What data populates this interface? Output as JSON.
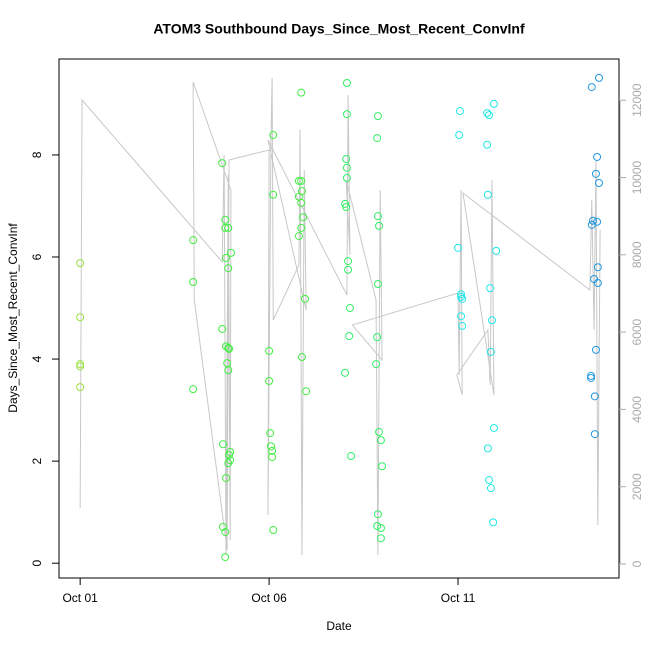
{
  "chart_data": {
    "type": "scatter",
    "title": "ATOM3 Southbound Days_Since_Most_Recent_ConvInf",
    "x_label": "Date",
    "y_label": "Days_Since_Most_Recent_ConvInf",
    "xlim": [
      -0.56,
      14.26
    ],
    "xticks": [
      {
        "value": 0,
        "label": "Oct 01"
      },
      {
        "value": 5,
        "label": "Oct 06"
      },
      {
        "value": 10,
        "label": "Oct 11"
      }
    ],
    "ylim": [
      -0.29,
      9.88
    ],
    "yticks": [
      0,
      2,
      4,
      6,
      8
    ],
    "y2lim": [
      -362,
      13066
    ],
    "y2ticks": [
      0,
      2000,
      4000,
      6000,
      8000,
      10000,
      12000
    ],
    "y2_color": "#aaaaaa",
    "series": [
      {
        "type": "line",
        "axis": "y2",
        "color": "#c8c8c8",
        "x": [
          0,
          0.05,
          3.76,
          3.81,
          3.86,
          3.92,
          3.97,
          3.99,
          2.99,
          3.02,
          3.89,
          3.94,
          5.0,
          4.97,
          5.05,
          5.08,
          5.11,
          5.79,
          5.82,
          5.87,
          5.93,
          5.98,
          4.97,
          7.06,
          7.09,
          7.14,
          7.04,
          7.83,
          7.88,
          7.94,
          7.99,
          7.2,
          10.0,
          10.03,
          10.08,
          10.11,
          9.97,
          10.79,
          10.85,
          10.9,
          10.95,
          10.13,
          13.49,
          13.54,
          13.6,
          13.65,
          13.7,
          13.76
        ],
        "values": [
          1449,
          12005,
          7814,
          10582,
          233,
          10065,
          621,
          9677,
          12471,
          6831,
          362,
          10453,
          10712,
          1268,
          10970,
          12575,
          6313,
          7736,
          11229,
          233,
          10194,
          6572,
          10970,
          6960,
          12135,
          7995,
          9935,
          6831,
          233,
          9677,
          5278,
          6184,
          7012,
          4890,
          9677,
          4373,
          4890,
          6055,
          4632,
          9935,
          4373,
          9599,
          7090,
          9418,
          6055,
          10453,
          1009,
          8641
        ]
      },
      {
        "type": "scatter",
        "color": "#99e040",
        "x": [
          0,
          0,
          0,
          0,
          0
        ],
        "values": [
          5.88,
          4.82,
          3.9,
          3.86,
          3.45
        ]
      },
      {
        "type": "scatter",
        "color": "#44ee44",
        "x": [
          2.99,
          2.99,
          2.99,
          3.76,
          3.84,
          3.84,
          3.92,
          3.99,
          3.86,
          3.92,
          3.76,
          3.86,
          3.92,
          3.94,
          3.89,
          3.92,
          3.78,
          3.97,
          3.94,
          3.97,
          3.92,
          3.86,
          3.78,
          3.84,
          3.84,
          5.11,
          5.11,
          5.0,
          5.0,
          5.03,
          5.05,
          5.08,
          5.08,
          5.11,
          5.85,
          5.79,
          5.85,
          5.87,
          5.79,
          5.85,
          5.9,
          5.85,
          5.79,
          5.95,
          5.87,
          5.98
        ],
        "values": [
          6.33,
          5.51,
          3.41,
          7.84,
          6.73,
          6.57,
          6.57,
          6.08,
          5.98,
          5.78,
          4.59,
          4.25,
          4.22,
          4.2,
          3.92,
          3.78,
          2.33,
          2.18,
          2.12,
          2.02,
          1.96,
          1.67,
          0.71,
          0.61,
          0.12,
          8.39,
          7.22,
          4.16,
          3.57,
          2.55,
          2.29,
          2.2,
          2.08,
          0.65,
          9.22,
          7.49,
          7.49,
          7.29,
          7.18,
          7.06,
          6.78,
          6.57,
          6.41,
          5.18,
          4.04,
          3.37
        ]
      },
      {
        "type": "scatter",
        "color": "#33ee66",
        "x": [
          7.06,
          7.06,
          7.04,
          7.06,
          7.06,
          7.01,
          7.04,
          7.09,
          7.09,
          7.14,
          7.12,
          7.01,
          7.17,
          7.88,
          7.86,
          7.88,
          7.91,
          7.88,
          7.86,
          7.83,
          7.91,
          7.96,
          7.99,
          7.88,
          7.86,
          7.96,
          7.96
        ],
        "values": [
          9.41,
          8.8,
          7.92,
          7.75,
          7.55,
          7.04,
          6.98,
          5.92,
          5.75,
          5.0,
          4.45,
          3.73,
          2.1,
          8.76,
          8.33,
          6.8,
          6.61,
          5.47,
          4.43,
          3.9,
          2.57,
          2.41,
          1.9,
          0.96,
          0.73,
          0.69,
          0.49
        ]
      },
      {
        "type": "scatter",
        "color": "#22e8e8",
        "x": [
          10.05,
          10.03,
          10.0,
          10.08,
          10.08,
          10.11,
          10.08,
          10.11,
          10.77,
          10.82,
          10.77,
          10.79,
          10.95,
          11.01,
          10.85,
          10.9,
          10.87,
          10.95,
          10.79,
          10.82,
          10.87,
          10.93
        ],
        "values": [
          8.86,
          8.39,
          6.18,
          5.27,
          5.22,
          5.18,
          4.84,
          4.65,
          8.82,
          8.78,
          8.2,
          7.22,
          9.0,
          6.12,
          5.39,
          4.76,
          4.14,
          2.65,
          2.25,
          1.63,
          1.47,
          0.8
        ]
      },
      {
        "type": "scatter",
        "color": "#2299e0",
        "x": [
          13.73,
          13.54,
          13.68,
          13.65,
          13.73,
          13.57,
          13.68,
          13.54,
          13.7,
          13.6,
          13.7,
          13.65,
          13.52,
          13.52,
          13.62,
          13.62
        ],
        "values": [
          9.51,
          9.33,
          7.96,
          7.63,
          7.45,
          6.71,
          6.69,
          6.63,
          5.8,
          5.57,
          5.49,
          4.18,
          3.67,
          3.63,
          3.27,
          2.53
        ]
      }
    ]
  }
}
